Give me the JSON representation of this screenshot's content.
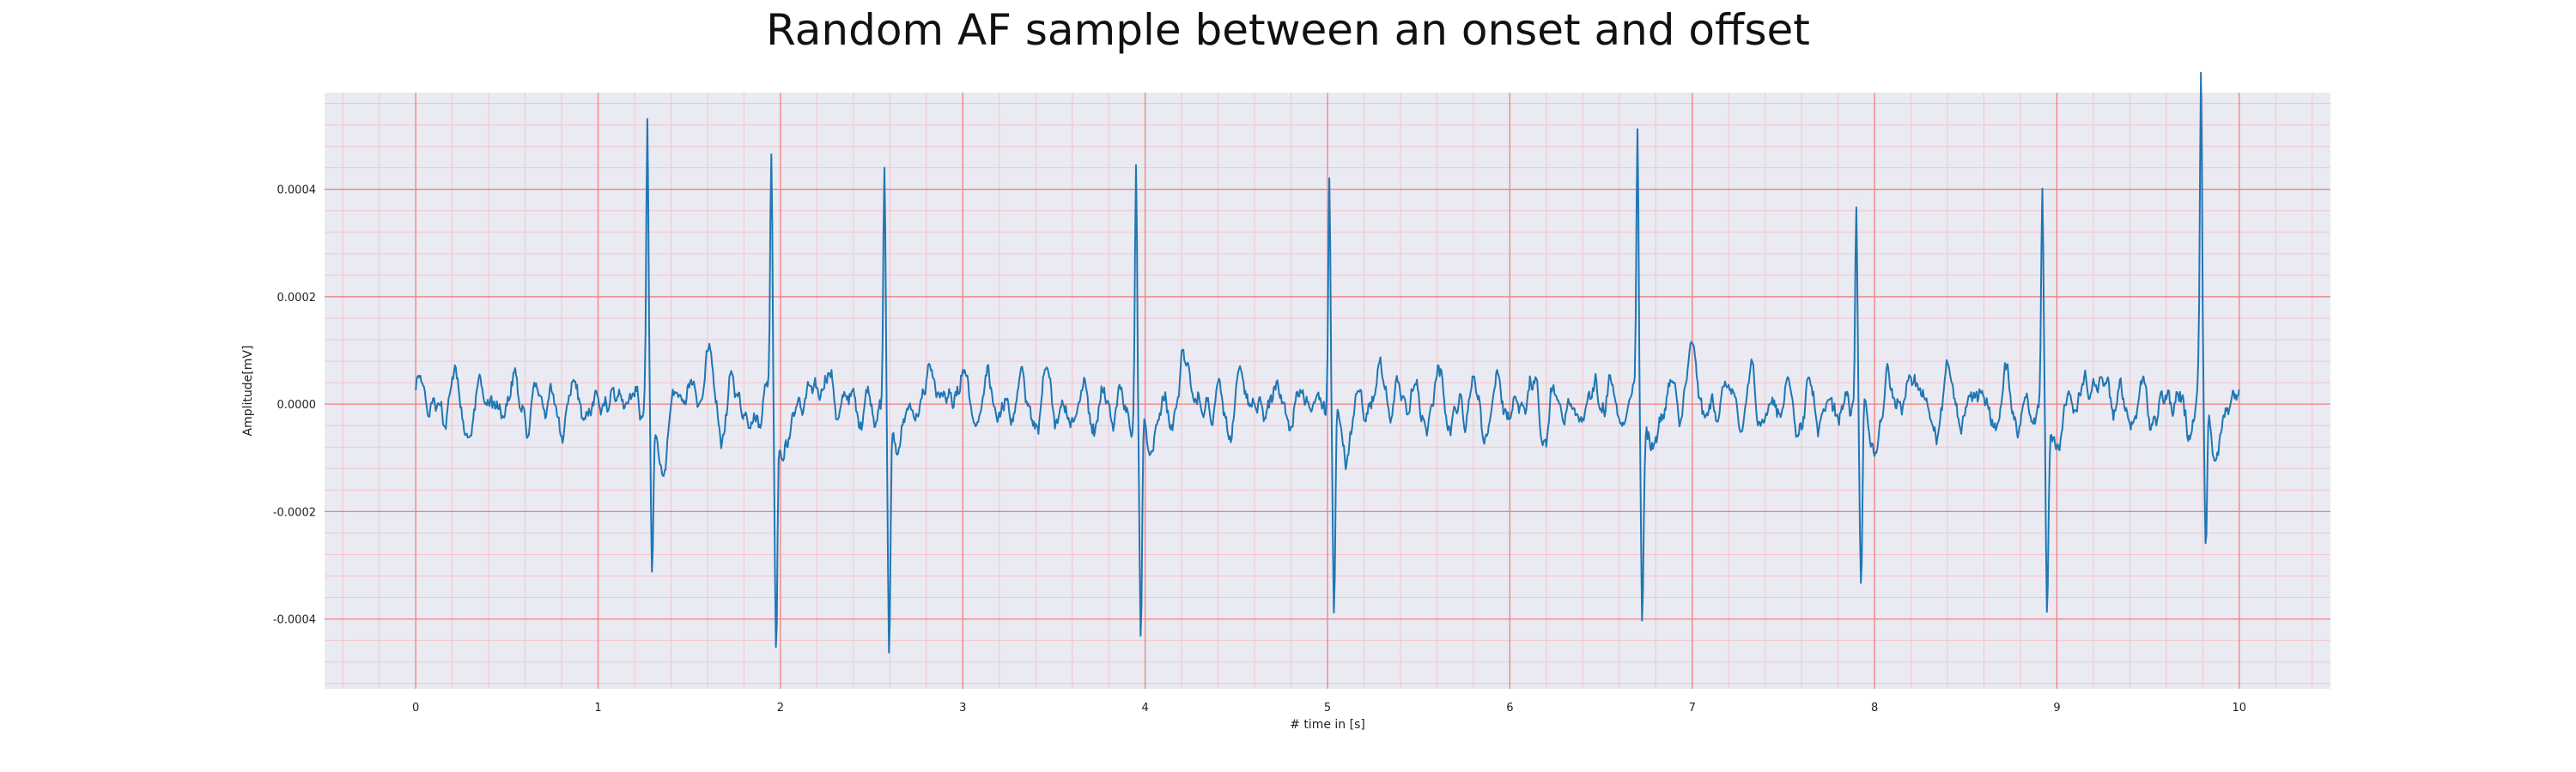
{
  "chart_data": {
    "type": "line",
    "title": "Random AF sample between an onset and offset",
    "xlabel": "# time in [s]",
    "ylabel": "Amplitude[mV]",
    "xlim": [
      -0.5,
      10.5
    ],
    "ylim": [
      -0.00053,
      0.00058
    ],
    "xticks": [
      "0",
      "1",
      "2",
      "3",
      "4",
      "5",
      "6",
      "7",
      "8",
      "9",
      "10"
    ],
    "yticks": [
      "-0.0004",
      "-0.0002",
      "0.0000",
      "0.0002",
      "0.0004"
    ],
    "grid": true,
    "major_grid_color": "#f08080",
    "minor_grid_color": "#f4c4cc",
    "background_color": "#eaeaf2",
    "line_color": "#1f77b4",
    "sample_rate_hz": 200,
    "beats": [
      {
        "t": 1.27,
        "r": 0.0005,
        "s": -0.00035
      },
      {
        "t": 1.95,
        "r": 0.00045,
        "s": -0.00041
      },
      {
        "t": 2.57,
        "r": 0.00045,
        "s": -0.00048
      },
      {
        "t": 3.95,
        "r": 0.00045,
        "s": -0.00041
      },
      {
        "t": 5.01,
        "r": 0.00044,
        "s": -0.00041
      },
      {
        "t": 6.7,
        "r": 0.0005,
        "s": -0.00035
      },
      {
        "t": 7.9,
        "r": 0.00039,
        "s": -0.00034
      },
      {
        "t": 8.92,
        "r": 0.0004,
        "s": -0.00041
      },
      {
        "t": 9.79,
        "r": 0.00054,
        "s": -0.00028
      }
    ]
  }
}
